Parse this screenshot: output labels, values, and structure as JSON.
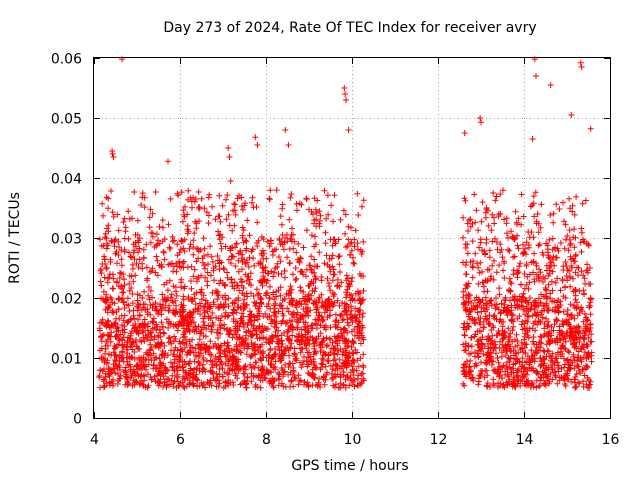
{
  "chart_data": {
    "type": "scatter",
    "title": "Day 273 of 2024, Rate Of TEC Index for receiver avry",
    "xlabel": "GPS time / hours",
    "ylabel": "ROTI / TECUs",
    "xlim": [
      4,
      16
    ],
    "ylim": [
      0,
      0.06
    ],
    "xticks": [
      4,
      6,
      8,
      10,
      12,
      14,
      16
    ],
    "xtick_labels": [
      "4",
      "6",
      "8",
      "10",
      "12",
      "14",
      "16"
    ],
    "yticks": [
      0,
      0.01,
      0.02,
      0.03,
      0.04,
      0.05,
      0.06
    ],
    "ytick_labels": [
      "0",
      "0.01",
      "0.02",
      "0.03",
      "0.04",
      "0.05",
      "0.06"
    ],
    "grid": true,
    "marker": "+",
    "color": "#ff0000",
    "series": [
      {
        "name": "ROTI",
        "segments": [
          {
            "x_start": 4.12,
            "x_end": 10.28,
            "typical_low": 0.005,
            "typical_high": 0.02
          },
          {
            "x_start": 12.58,
            "x_end": 15.58,
            "typical_low": 0.005,
            "typical_high": 0.02
          }
        ],
        "notable_points": [
          {
            "x": 4.65,
            "y": 0.0598
          },
          {
            "x": 4.42,
            "y": 0.0445
          },
          {
            "x": 4.43,
            "y": 0.044
          },
          {
            "x": 4.45,
            "y": 0.0435
          },
          {
            "x": 5.72,
            "y": 0.0428
          },
          {
            "x": 7.12,
            "y": 0.045
          },
          {
            "x": 7.15,
            "y": 0.0435
          },
          {
            "x": 7.18,
            "y": 0.0395
          },
          {
            "x": 7.75,
            "y": 0.0468
          },
          {
            "x": 7.8,
            "y": 0.0455
          },
          {
            "x": 8.45,
            "y": 0.048
          },
          {
            "x": 8.52,
            "y": 0.0455
          },
          {
            "x": 9.82,
            "y": 0.055
          },
          {
            "x": 9.84,
            "y": 0.054
          },
          {
            "x": 9.86,
            "y": 0.053
          },
          {
            "x": 9.92,
            "y": 0.048
          },
          {
            "x": 12.62,
            "y": 0.0475
          },
          {
            "x": 12.98,
            "y": 0.05
          },
          {
            "x": 13.0,
            "y": 0.0493
          },
          {
            "x": 14.25,
            "y": 0.0598
          },
          {
            "x": 14.28,
            "y": 0.057
          },
          {
            "x": 14.62,
            "y": 0.0555
          },
          {
            "x": 15.32,
            "y": 0.0592
          },
          {
            "x": 15.34,
            "y": 0.0585
          },
          {
            "x": 15.1,
            "y": 0.0505
          },
          {
            "x": 14.2,
            "y": 0.0465
          },
          {
            "x": 15.55,
            "y": 0.0482
          }
        ]
      }
    ]
  }
}
